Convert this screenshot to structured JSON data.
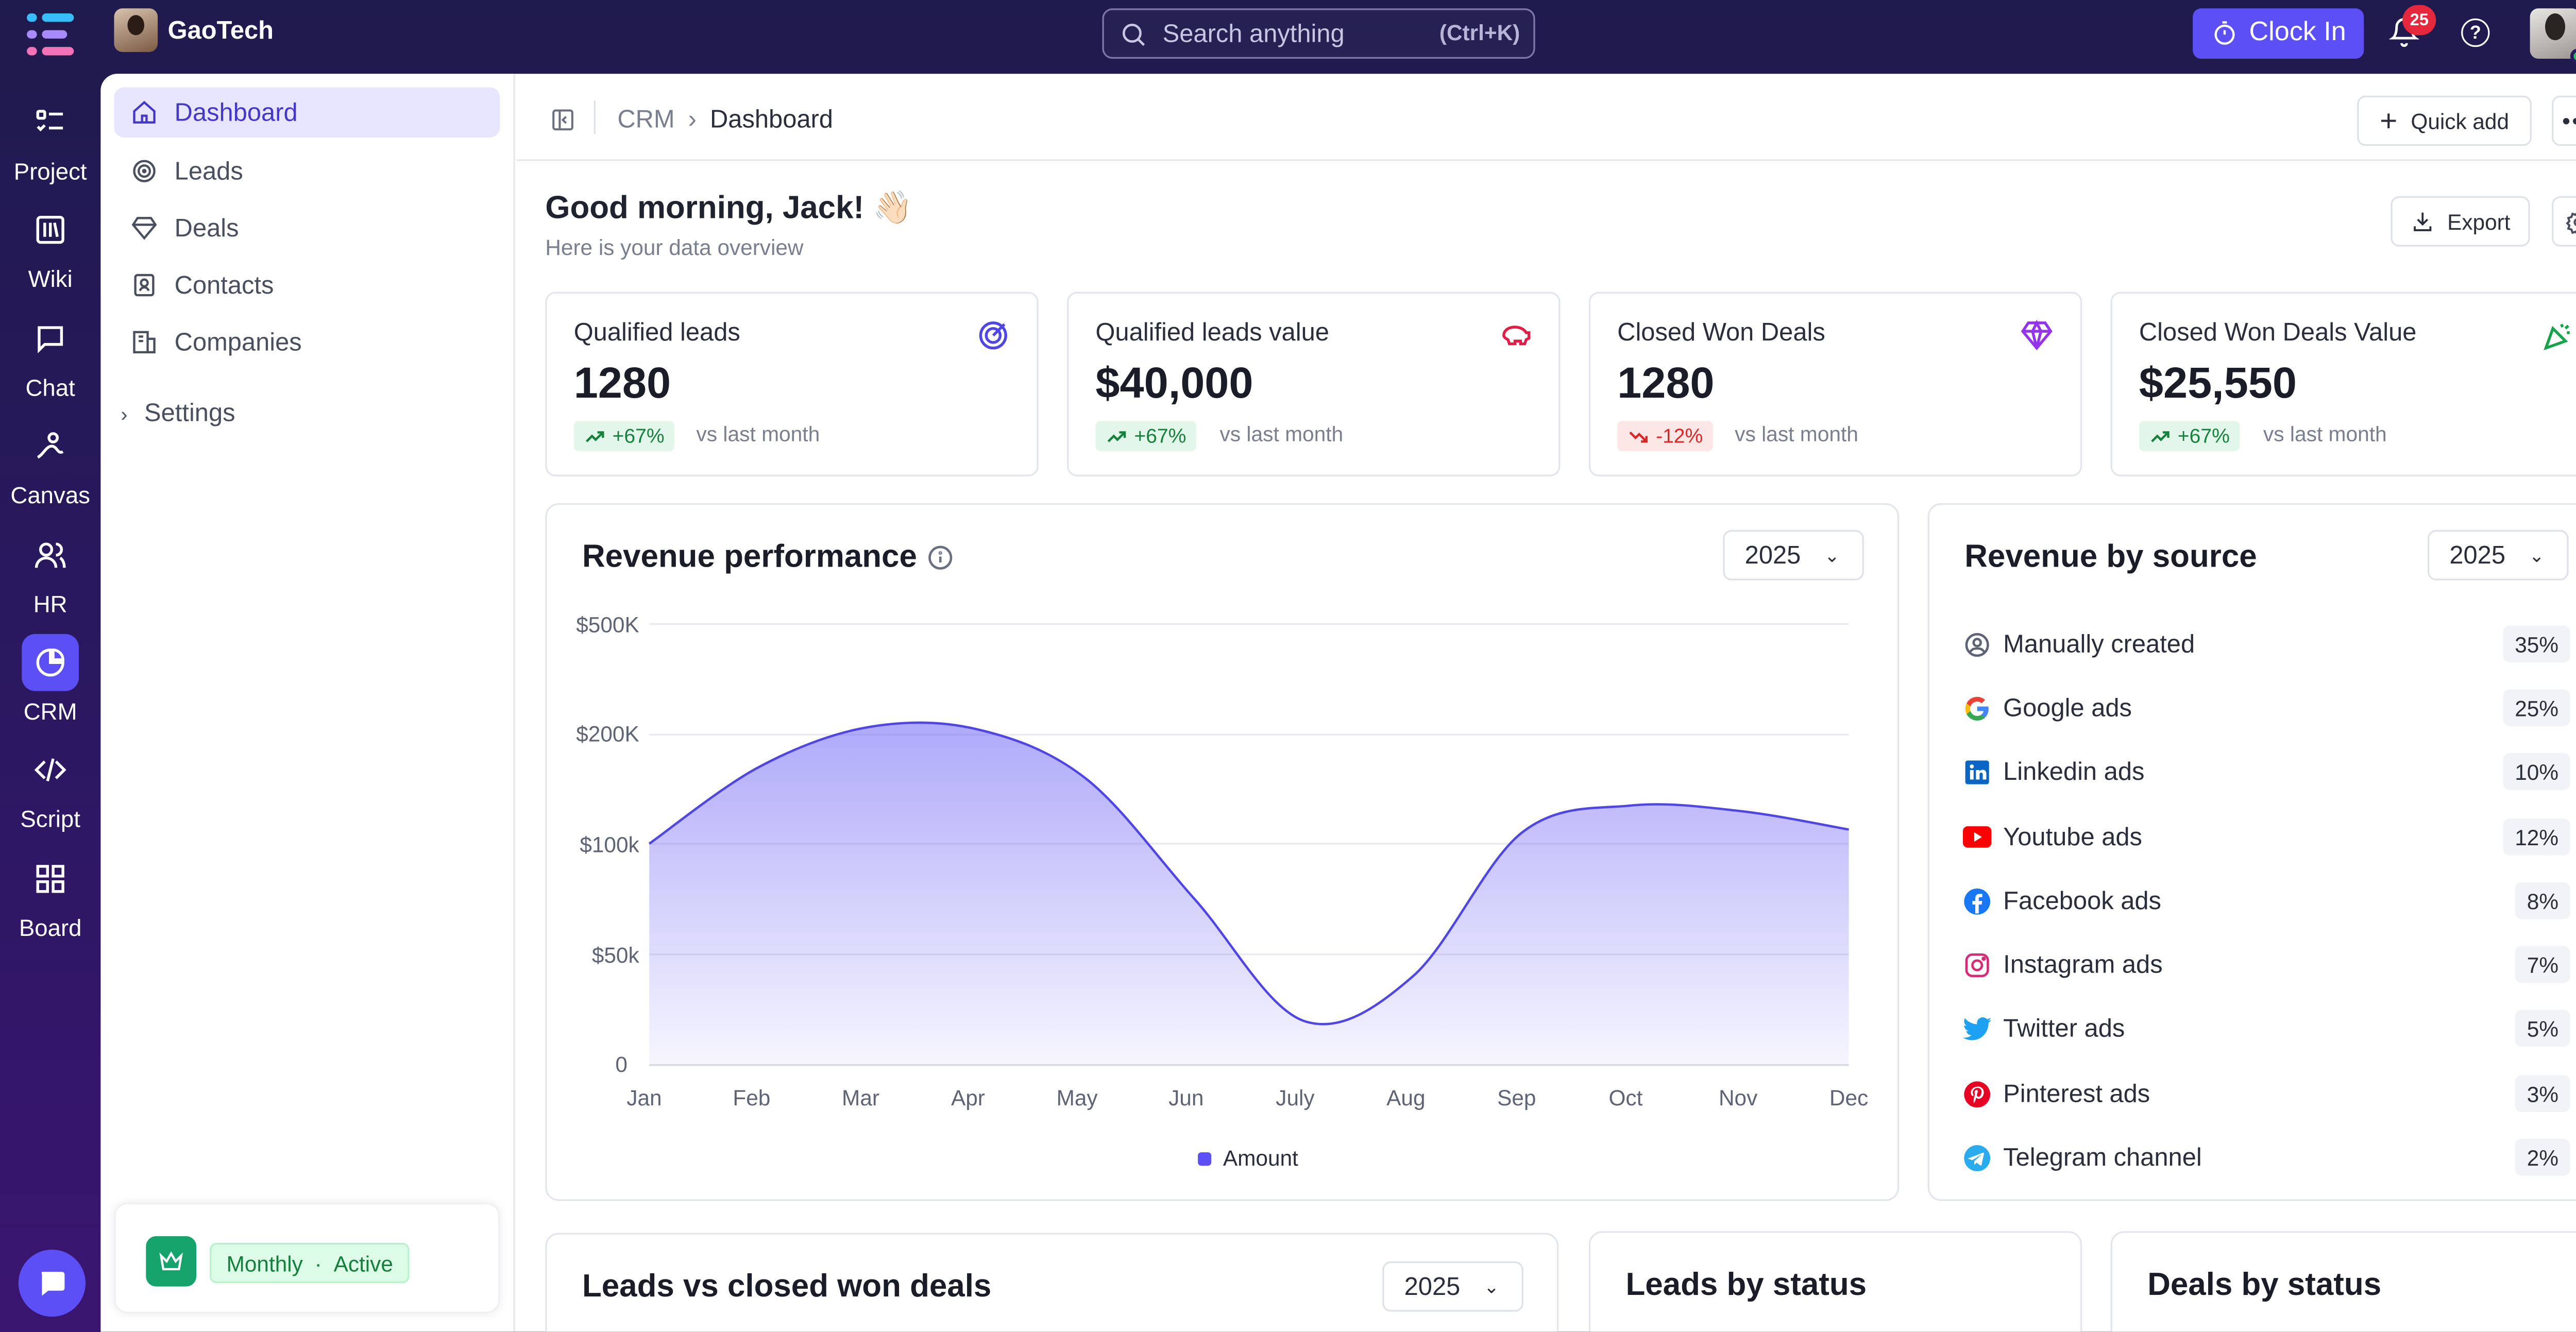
{
  "brand": {
    "name": "GaoTech"
  },
  "search": {
    "placeholder": "Search anything",
    "shortcut": "(Ctrl+K)"
  },
  "clock_in": {
    "label": "Clock In"
  },
  "notifications": {
    "count": "25"
  },
  "rail": [
    {
      "label": "Project",
      "icon": "project-icon"
    },
    {
      "label": "Wiki",
      "icon": "wiki-icon"
    },
    {
      "label": "Chat",
      "icon": "chat-icon"
    },
    {
      "label": "Canvas",
      "icon": "canvas-icon"
    },
    {
      "label": "HR",
      "icon": "hr-icon"
    },
    {
      "label": "CRM",
      "icon": "crm-icon"
    },
    {
      "label": "Script",
      "icon": "script-icon"
    },
    {
      "label": "Board",
      "icon": "board-icon"
    }
  ],
  "sidenav": {
    "items": [
      {
        "label": "Dashboard",
        "icon": "home-icon"
      },
      {
        "label": "Leads",
        "icon": "leads-icon"
      },
      {
        "label": "Deals",
        "icon": "diamond-icon"
      },
      {
        "label": "Contacts",
        "icon": "contacts-icon"
      },
      {
        "label": "Companies",
        "icon": "companies-icon"
      }
    ],
    "settings": "Settings",
    "plan": {
      "period": "Monthly",
      "status": "Active"
    }
  },
  "breadcrumb": {
    "root": "CRM",
    "current": "Dashboard"
  },
  "header": {
    "quick_add": "Quick add",
    "export": "Export"
  },
  "greeting": {
    "title": "Good morning, Jack! 👋🏻",
    "subtitle": "Here is your data overview"
  },
  "stats": [
    {
      "label": "Qualified leads",
      "value": "1280",
      "change": "+67%",
      "trend": "up",
      "vs": "vs last month",
      "icon": "target-icon",
      "color": "#4f46e5"
    },
    {
      "label": "Qualified leads value",
      "value": "$40,000",
      "change": "+67%",
      "trend": "up",
      "vs": "vs last month",
      "icon": "piggy-bank-icon",
      "color": "#e11d48"
    },
    {
      "label": "Closed Won Deals",
      "value": "1280",
      "change": "-12%",
      "trend": "down",
      "vs": "vs last month",
      "icon": "diamond-icon",
      "color": "#9333ea"
    },
    {
      "label": "Closed Won Deals Value",
      "value": "$25,550",
      "change": "+67%",
      "trend": "up",
      "vs": "vs last month",
      "icon": "party-popper-icon",
      "color": "#16a34a"
    }
  ],
  "revenue_performance": {
    "title": "Revenue performance",
    "year": "2025"
  },
  "chart_data": {
    "type": "area",
    "title": "Revenue performance",
    "categories": [
      "Jan",
      "Feb",
      "Mar",
      "Apr",
      "May",
      "Jun",
      "July",
      "Aug",
      "Sep",
      "Oct",
      "Nov",
      "Dec"
    ],
    "y_ticks": [
      "$500K",
      "$200K",
      "$100k",
      "$50k",
      "0"
    ],
    "series": [
      {
        "name": "Amount",
        "values": [
          100000,
          170000,
          220000,
          215000,
          160000,
          75000,
          20000,
          40000,
          110000,
          135000,
          130000,
          113000
        ]
      }
    ],
    "legend": "bottom-center",
    "grid": true,
    "color": "#5b4ff5"
  },
  "revenue_by_source": {
    "title": "Revenue by source",
    "year": "2025",
    "items": [
      {
        "name": "Manually created",
        "pct": "35%",
        "icon": "user-circle-icon"
      },
      {
        "name": "Google ads",
        "pct": "25%",
        "icon": "google-icon"
      },
      {
        "name": "Linkedin ads",
        "pct": "10%",
        "icon": "linkedin-icon"
      },
      {
        "name": "Youtube ads",
        "pct": "12%",
        "icon": "youtube-icon"
      },
      {
        "name": "Facebook ads",
        "pct": "8%",
        "icon": "facebook-icon"
      },
      {
        "name": "Instagram ads",
        "pct": "7%",
        "icon": "instagram-icon"
      },
      {
        "name": "Twitter ads",
        "pct": "5%",
        "icon": "twitter-icon"
      },
      {
        "name": "Pinterest ads",
        "pct": "3%",
        "icon": "pinterest-icon"
      },
      {
        "name": "Telegram channel",
        "pct": "2%",
        "icon": "telegram-icon"
      }
    ]
  },
  "bottom_cards": [
    {
      "title": "Leads vs closed won deals",
      "year": "2025"
    },
    {
      "title": "Leads by status"
    },
    {
      "title": "Deals by status"
    }
  ]
}
